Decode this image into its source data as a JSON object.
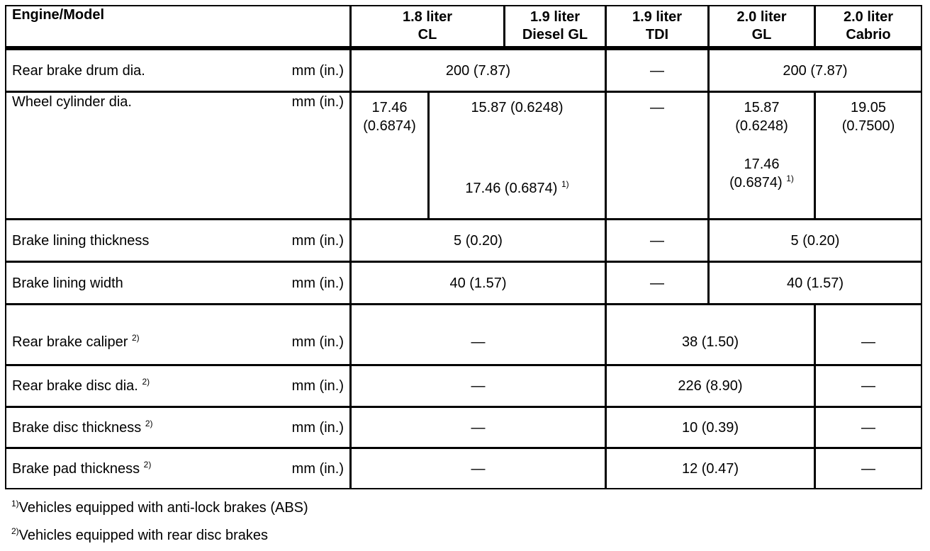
{
  "header": {
    "label": "Engine/Model",
    "models": [
      "1.8 liter\nCL",
      "1.9 liter\nDiesel GL",
      "1.9 liter\nTDI",
      "2.0 liter\nGL",
      "2.0 liter\nCabrio"
    ],
    "model_lines": [
      [
        "1.8 liter",
        "CL"
      ],
      [
        "1.9 liter",
        "Diesel GL"
      ],
      [
        "1.9 liter",
        "TDI"
      ],
      [
        "2.0 liter",
        "GL"
      ],
      [
        "2.0 liter",
        "Cabrio"
      ]
    ]
  },
  "unit": "mm (in.)",
  "dash": "—",
  "rows": {
    "drum": {
      "label": "Rear brake drum dia.",
      "a": "200 (7.87)",
      "tdi": "—",
      "b": "200 (7.87)"
    },
    "wheel": {
      "label": "Wheel cylinder dia.",
      "cl": [
        "17.46",
        "(0.6874)"
      ],
      "diesel1": "15.87 (0.6248)",
      "diesel2": "17.46 (0.6874)",
      "tdi": "—",
      "gl1": [
        "15.87",
        "(0.6248)"
      ],
      "gl2": [
        "17.46",
        "(0.6874)"
      ],
      "cabrio": [
        "19.05",
        "(0.7500)"
      ]
    },
    "lining_thick": {
      "label": "Brake lining thickness",
      "a": "5 (0.20)",
      "tdi": "—",
      "b": "5 (0.20)"
    },
    "lining_width": {
      "label": "Brake lining width",
      "a": "40 (1.57)",
      "tdi": "—",
      "b": "40 (1.57)"
    },
    "caliper": {
      "label": "Rear brake caliper",
      "a": "—",
      "mid": "38 (1.50)",
      "c": "—"
    },
    "disc_dia": {
      "label": "Rear brake disc dia.",
      "a": "—",
      "mid": "226 (8.90)",
      "c": "—"
    },
    "disc_thick": {
      "label": "Brake disc thickness",
      "a": "—",
      "mid": "10 (0.39)",
      "c": "—"
    },
    "pad_thick": {
      "label": "Brake pad thickness",
      "a": "—",
      "mid": "12 (0.47)",
      "c": "—"
    }
  },
  "footnotes": [
    {
      "mark": "1)",
      "text": "Vehicles equipped with anti-lock brakes (ABS)"
    },
    {
      "mark": "2)",
      "text": "Vehicles equipped with rear disc brakes"
    }
  ],
  "marks": {
    "one": "1)",
    "two": "2)"
  }
}
